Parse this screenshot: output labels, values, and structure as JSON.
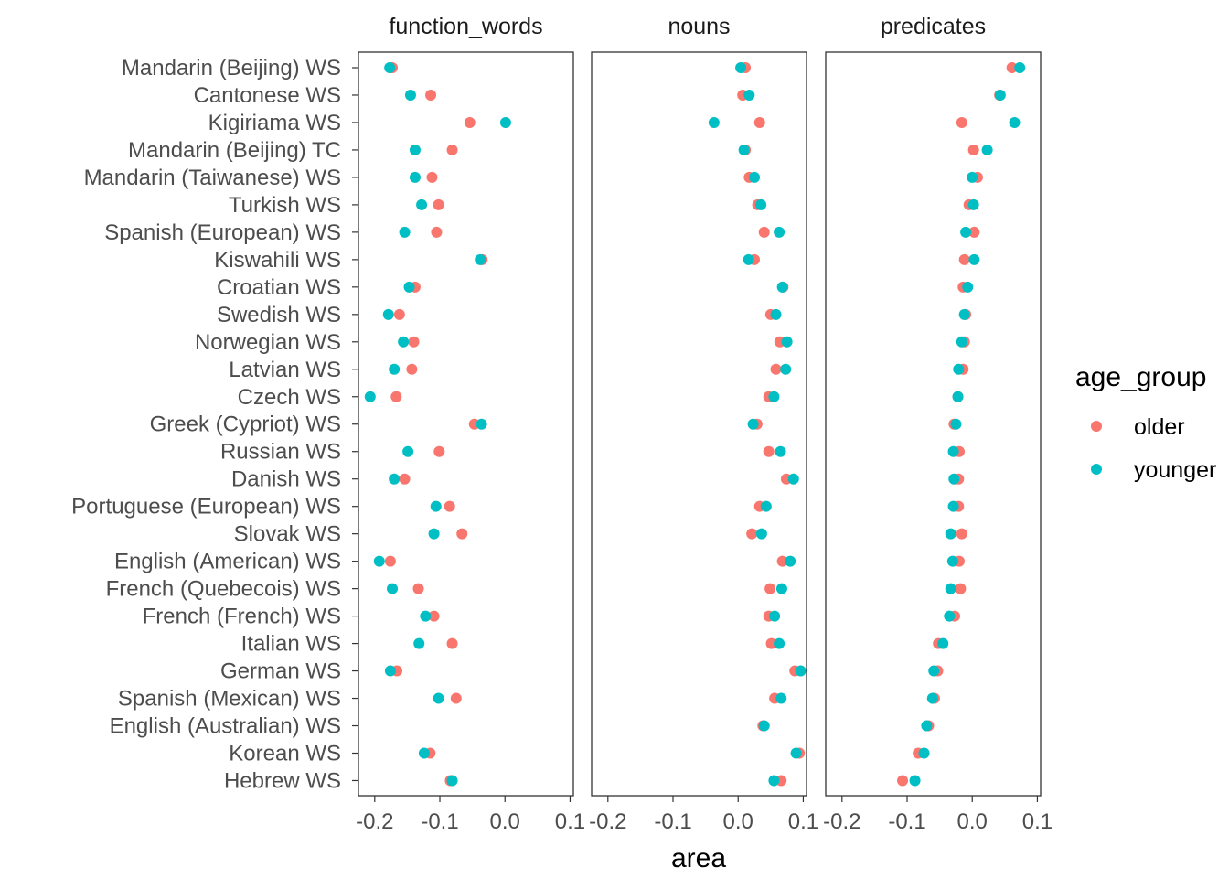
{
  "chart_data": {
    "type": "scatter",
    "xlabel": "area",
    "x_ticks": [
      "-0.2",
      "-0.1",
      "0.0",
      "0.1"
    ],
    "x_tick_values": [
      -0.2,
      -0.1,
      0.0,
      0.1
    ],
    "xlim": [
      -0.225,
      0.105
    ],
    "grid": false,
    "legend": {
      "title": "age_group",
      "position": "right",
      "entries": [
        {
          "name": "older",
          "color": "#F8766D"
        },
        {
          "name": "younger",
          "color": "#00BFC4"
        }
      ]
    },
    "categories": [
      "Mandarin (Beijing) WS",
      "Cantonese WS",
      "Kigiriama WS",
      "Mandarin (Beijing) TC",
      "Mandarin (Taiwanese) WS",
      "Turkish WS",
      "Spanish (European) WS",
      "Kiswahili WS",
      "Croatian WS",
      "Swedish WS",
      "Norwegian WS",
      "Latvian WS",
      "Czech WS",
      "Greek (Cypriot) WS",
      "Russian WS",
      "Danish WS",
      "Portuguese (European) WS",
      "Slovak WS",
      "English (American) WS",
      "French (Quebecois) WS",
      "French (French) WS",
      "Italian WS",
      "German WS",
      "Spanish (Mexican) WS",
      "English (Australian) WS",
      "Korean WS",
      "Hebrew WS"
    ],
    "panels": [
      {
        "title": "function_words",
        "series": [
          {
            "name": "older",
            "values": [
              -0.173,
              -0.114,
              -0.054,
              -0.081,
              -0.112,
              -0.102,
              -0.105,
              -0.035,
              -0.138,
              -0.162,
              -0.14,
              -0.143,
              -0.167,
              -0.047,
              -0.101,
              -0.154,
              -0.085,
              -0.066,
              -0.176,
              -0.133,
              -0.109,
              -0.081,
              -0.166,
              -0.075,
              null,
              -0.115,
              -0.084
            ]
          },
          {
            "name": "younger",
            "values": [
              -0.177,
              -0.145,
              0.001,
              -0.138,
              -0.138,
              -0.128,
              -0.154,
              -0.038,
              -0.147,
              -0.179,
              -0.156,
              -0.17,
              -0.207,
              -0.036,
              -0.149,
              -0.17,
              -0.106,
              -0.109,
              -0.193,
              -0.173,
              -0.122,
              -0.132,
              -0.176,
              -0.102,
              null,
              -0.124,
              -0.081
            ]
          }
        ]
      },
      {
        "title": "nouns",
        "series": [
          {
            "name": "older",
            "values": [
              0.011,
              0.007,
              0.033,
              0.011,
              0.017,
              0.03,
              0.04,
              0.025,
              0.069,
              0.05,
              0.064,
              0.058,
              0.047,
              0.029,
              0.047,
              0.074,
              0.033,
              0.021,
              0.068,
              0.049,
              0.047,
              0.051,
              0.087,
              0.056,
              0.038,
              0.094,
              0.066
            ]
          },
          {
            "name": "younger",
            "values": [
              0.004,
              0.017,
              -0.037,
              0.009,
              0.025,
              0.035,
              0.063,
              0.016,
              0.068,
              0.058,
              0.075,
              0.073,
              0.055,
              0.023,
              0.065,
              0.085,
              0.043,
              0.036,
              0.08,
              0.067,
              0.056,
              0.063,
              0.096,
              0.066,
              0.04,
              0.089,
              0.055
            ]
          }
        ]
      },
      {
        "title": "predicates",
        "series": [
          {
            "name": "older",
            "values": [
              0.061,
              0.042,
              -0.016,
              0.002,
              0.008,
              -0.005,
              0.003,
              -0.012,
              -0.014,
              -0.01,
              -0.012,
              -0.014,
              -0.022,
              -0.028,
              -0.02,
              -0.021,
              -0.021,
              -0.016,
              -0.02,
              -0.018,
              -0.027,
              -0.052,
              -0.053,
              -0.058,
              -0.067,
              -0.083,
              -0.107
            ]
          },
          {
            "name": "younger",
            "values": [
              0.073,
              0.043,
              0.065,
              0.023,
              0.0,
              0.002,
              -0.01,
              0.003,
              -0.007,
              -0.012,
              -0.016,
              -0.021,
              -0.022,
              -0.025,
              -0.029,
              -0.028,
              -0.029,
              -0.033,
              -0.03,
              -0.033,
              -0.035,
              -0.045,
              -0.059,
              -0.061,
              -0.07,
              -0.074,
              -0.088
            ]
          }
        ]
      }
    ]
  }
}
